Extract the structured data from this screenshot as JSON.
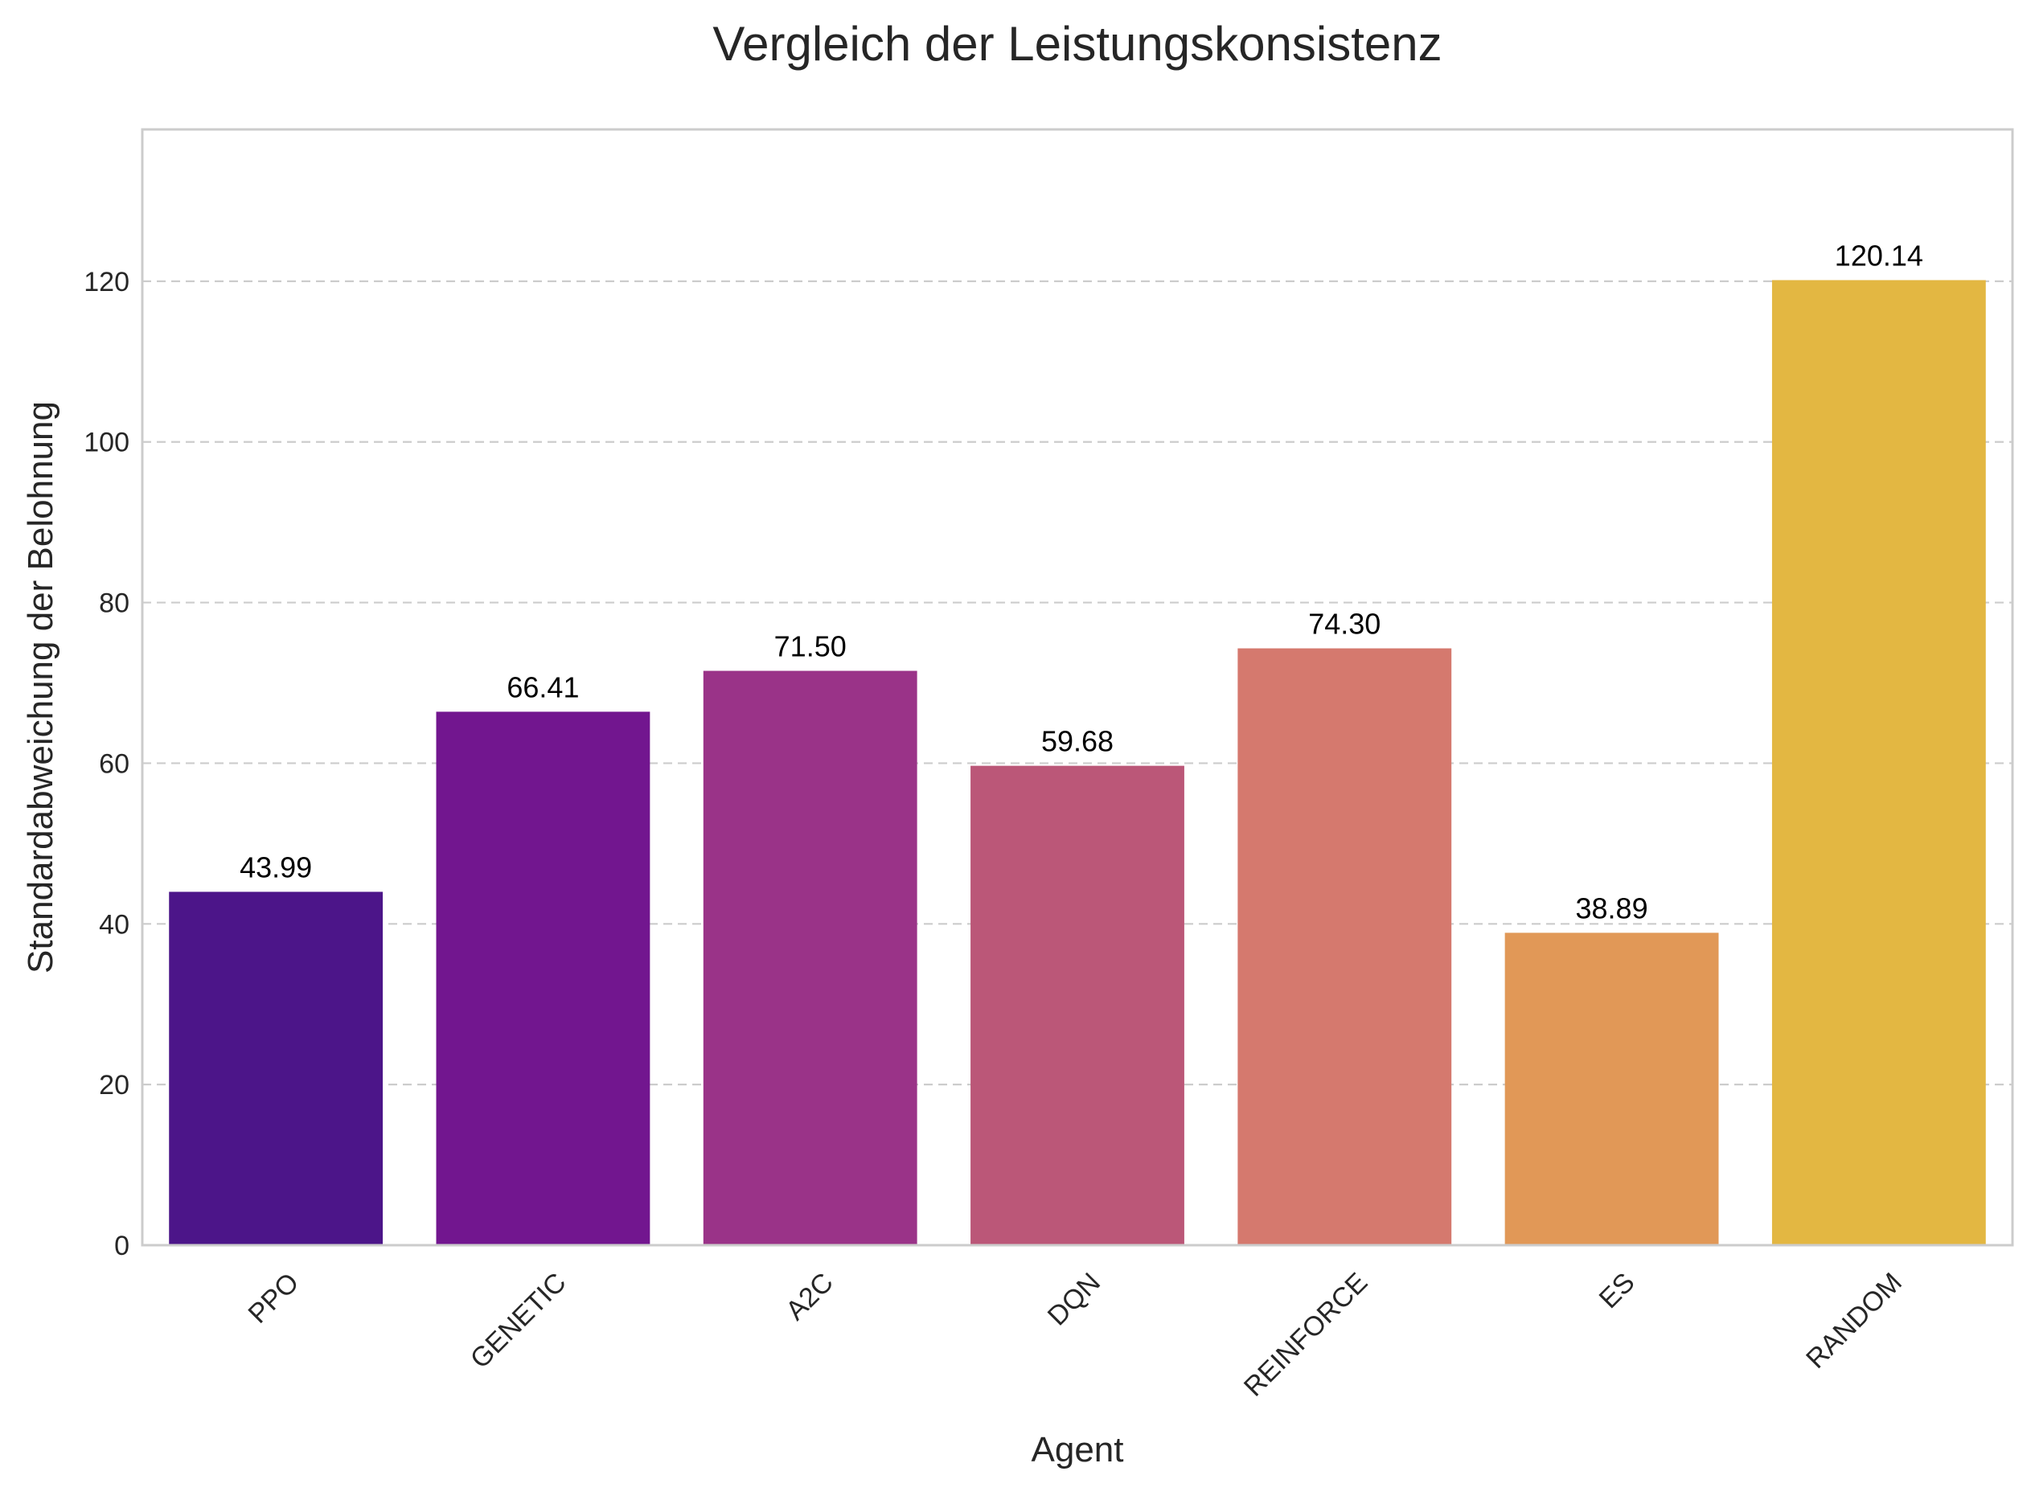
{
  "chart_data": {
    "type": "bar",
    "title": "Vergleich der Leistungskonsistenz",
    "xlabel": "Agent",
    "ylabel": "Standardabweichung der Belohnung",
    "categories": [
      "PPO",
      "GENETIC",
      "A2C",
      "DQN",
      "REINFORCE",
      "ES",
      "RANDOM"
    ],
    "values": [
      43.99,
      66.41,
      71.5,
      59.68,
      74.3,
      38.89,
      120.14
    ],
    "value_labels": [
      "43.99",
      "66.41",
      "71.50",
      "59.68",
      "74.30",
      "38.89",
      "120.14"
    ],
    "colors": [
      "#4c1589",
      "#72168f",
      "#9a3388",
      "#bb5778",
      "#d5796e",
      "#e19857",
      "#e3b742"
    ],
    "ylim": [
      0,
      138.9
    ],
    "yticks": [
      0,
      20,
      40,
      60,
      80,
      100,
      120
    ],
    "ytick_labels": [
      "0",
      "20",
      "40",
      "60",
      "80",
      "100",
      "120"
    ],
    "grid": true,
    "grid_axis": "y",
    "legend": "none"
  }
}
